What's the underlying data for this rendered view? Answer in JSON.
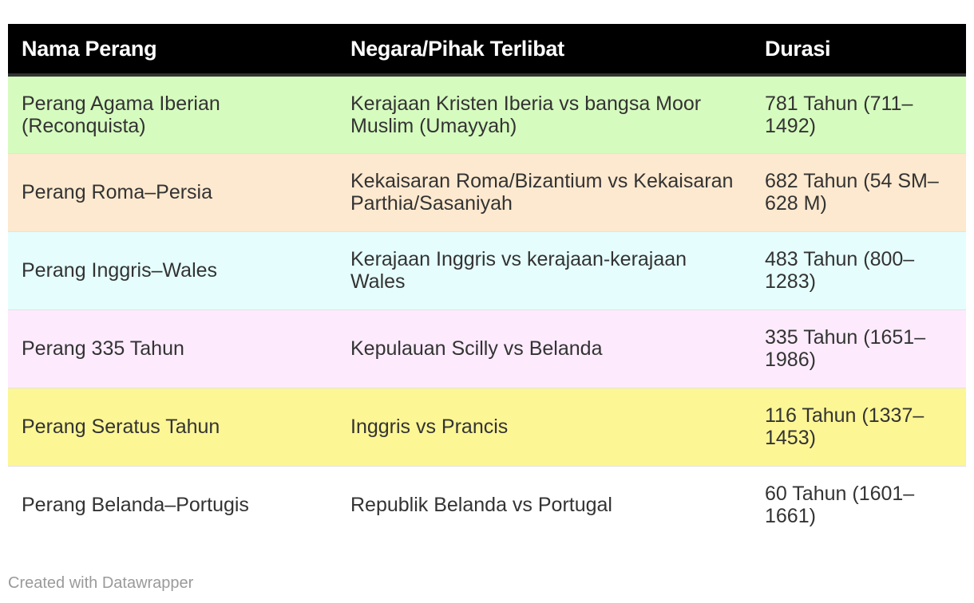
{
  "chart_data": {
    "type": "table",
    "columns": [
      "Nama Perang",
      "Negara/Pihak Terlibat",
      "Durasi"
    ],
    "rows": [
      {
        "cells": [
          "Perang Agama Iberian (Reconquista)",
          "Kerajaan Kristen Iberia vs bangsa Moor Muslim (Umayyah)",
          "781 Tahun (711–1492)"
        ],
        "color": "#d6fbbf"
      },
      {
        "cells": [
          "Perang Roma–Persia",
          "Kekaisaran Roma/Bizantium vs Kekaisaran Parthia/Sasaniyah",
          "682 Tahun (54 SM–628 M)"
        ],
        "color": "#fde9cf"
      },
      {
        "cells": [
          "Perang Inggris–Wales",
          "Kerajaan Inggris vs kerajaan-kerajaan Wales",
          "483 Tahun (800–1283)"
        ],
        "color": "#e5fefd"
      },
      {
        "cells": [
          "Perang 335 Tahun",
          "Kepulauan Scilly vs Belanda",
          "335 Tahun (1651–1986)"
        ],
        "color": "#fdebfd"
      },
      {
        "cells": [
          "Perang Seratus Tahun",
          "Inggris vs Prancis",
          "116 Tahun (1337–1453)"
        ],
        "color": "#fdf695"
      },
      {
        "cells": [
          "Perang Belanda–Portugis",
          "Republik Belanda vs Portugal",
          "60 Tahun (1601–1661)"
        ],
        "color": "#ffffff"
      }
    ],
    "header_color": "#000000"
  },
  "footer": {
    "credit": "Created with Datawrapper"
  }
}
